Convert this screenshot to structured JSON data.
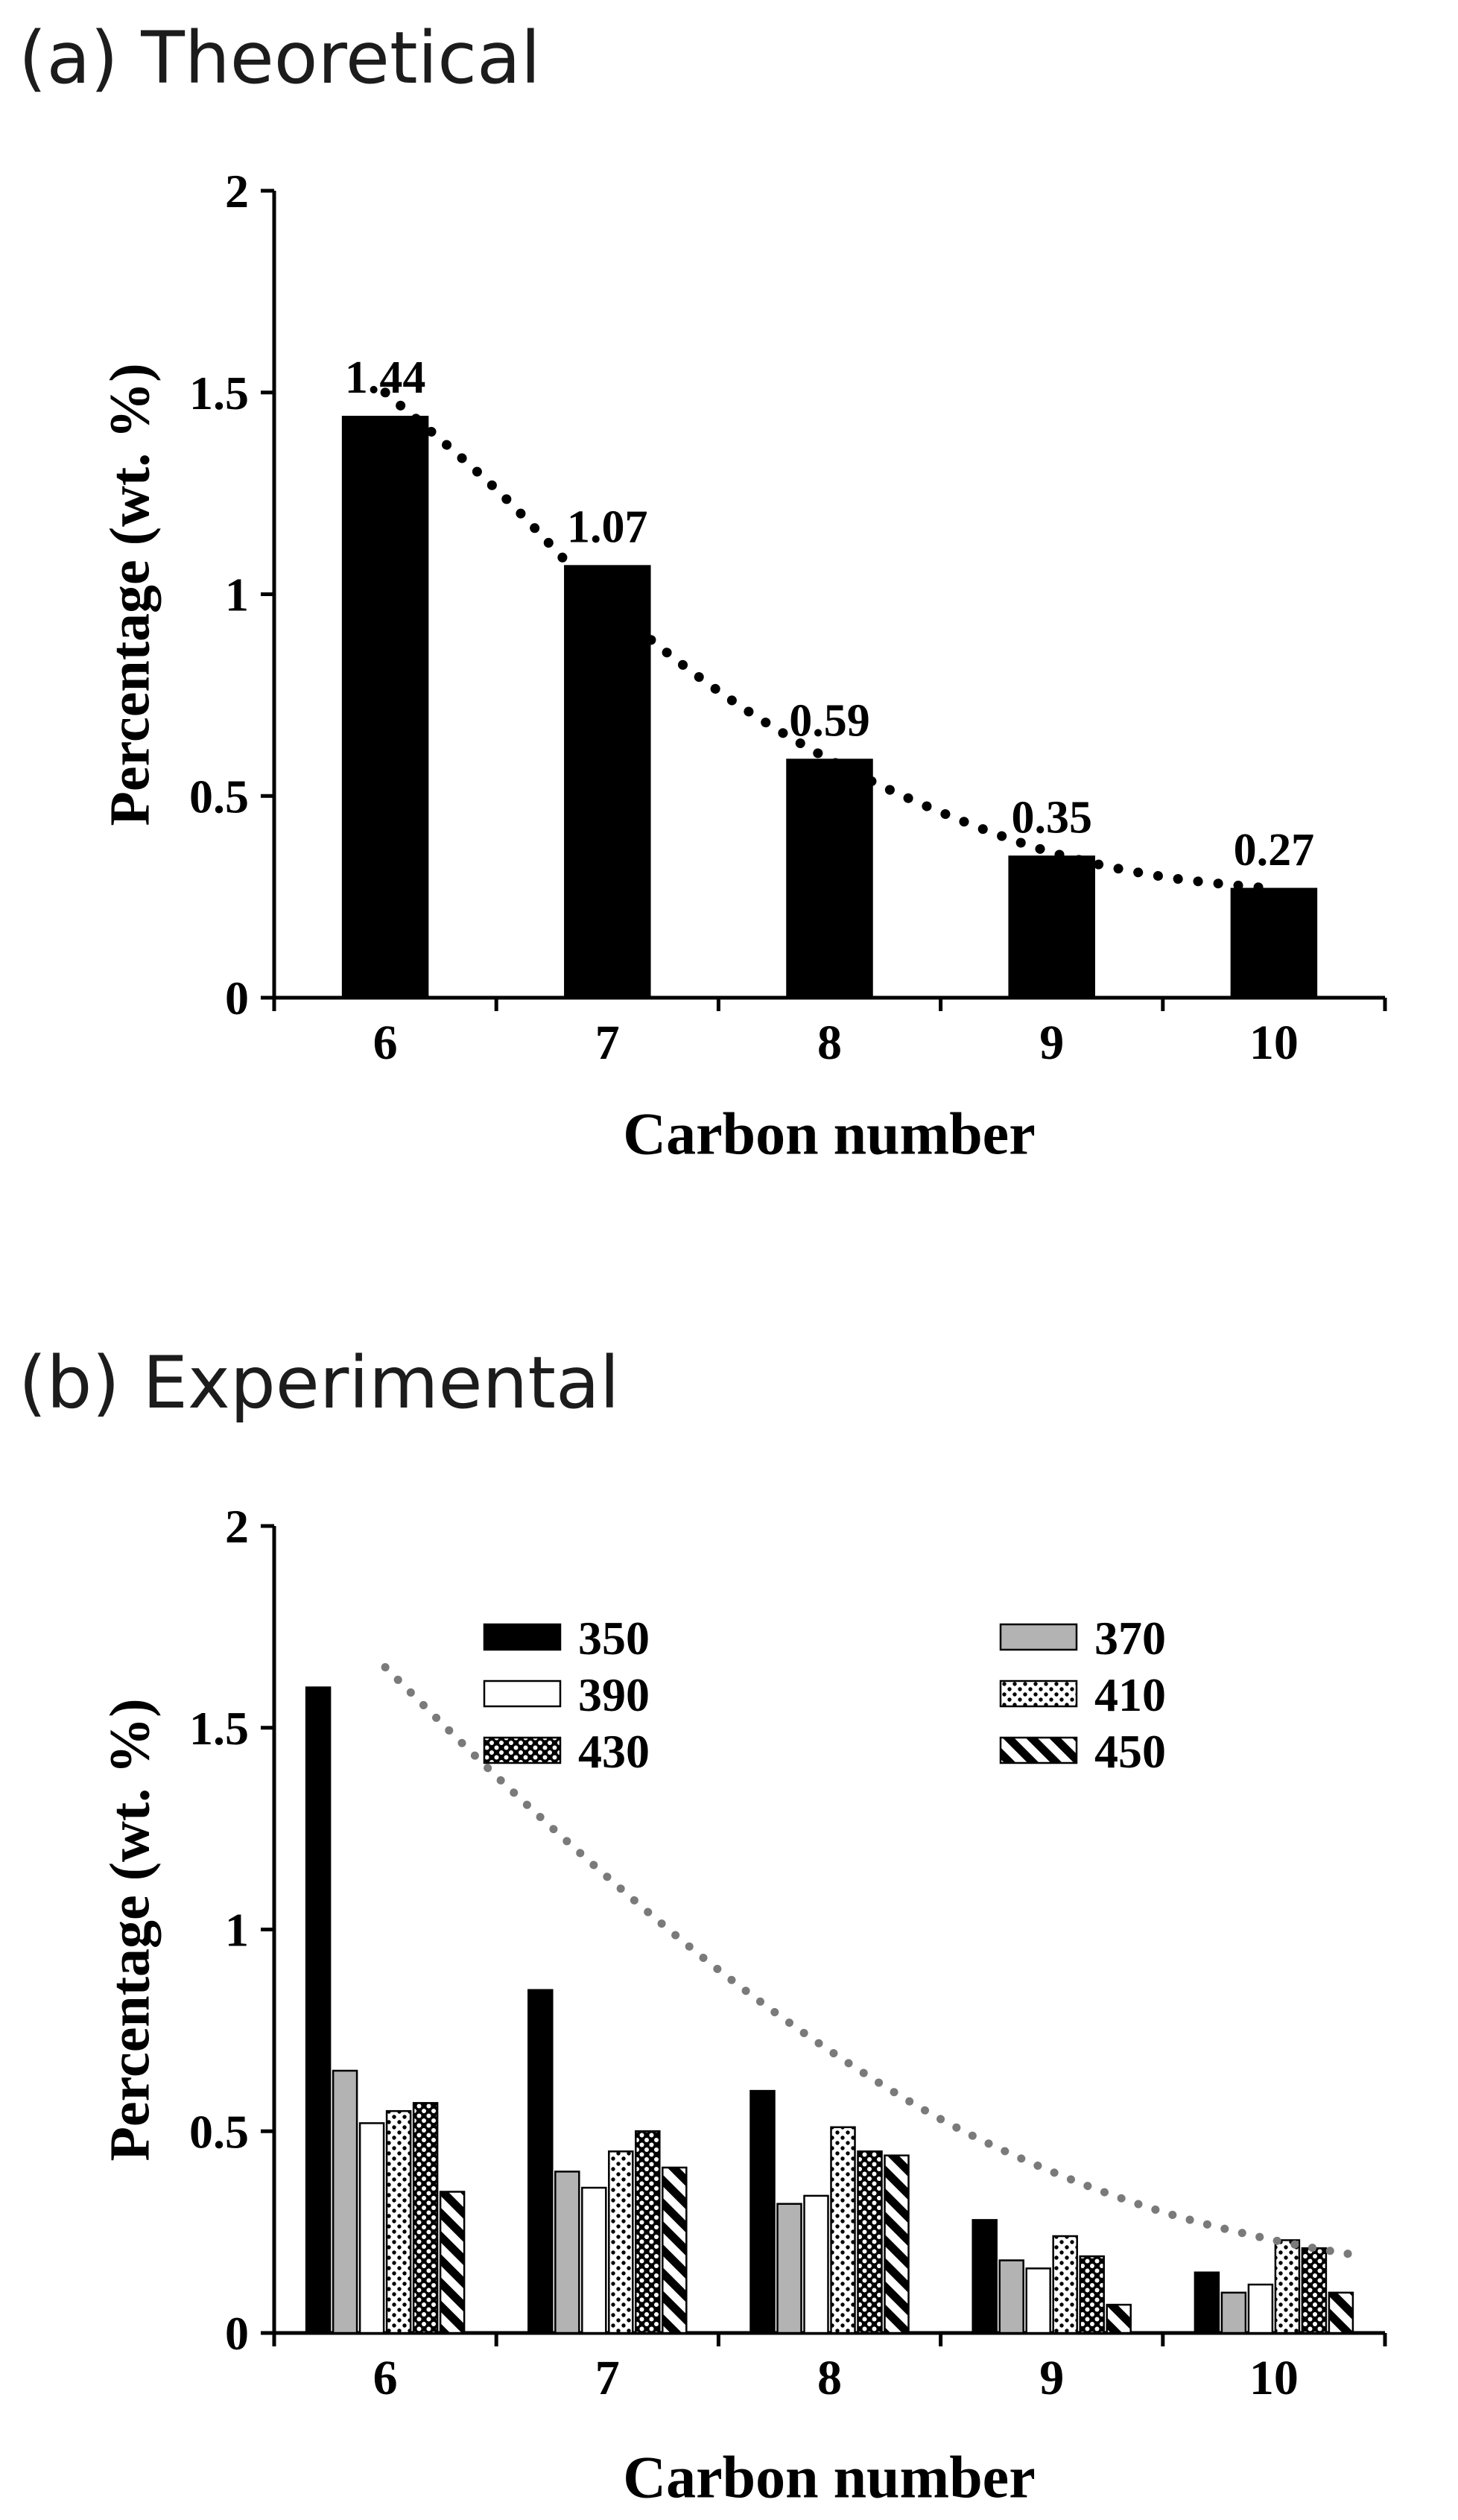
{
  "panels": [
    {
      "label": "(a) Theoretical",
      "ylabel": "Percentage (wt. %)",
      "xlabel": "Carbon number"
    },
    {
      "label": "(b) Experimental",
      "ylabel": "Percentage (wt. %)",
      "xlabel": "Carbon number"
    }
  ],
  "chart_data": [
    {
      "type": "bar",
      "title": "(a) Theoretical",
      "categories": [
        "6",
        "7",
        "8",
        "9",
        "10"
      ],
      "values": [
        1.44,
        1.07,
        0.59,
        0.35,
        0.27
      ],
      "bar_labels": [
        "1.44",
        "1.07",
        "0.59",
        "0.35",
        "0.27"
      ],
      "xlabel": "Carbon number",
      "ylabel": "Percentage (wt. %)",
      "ylim": [
        0,
        2
      ],
      "yticks": [
        "0",
        "0.5",
        "1",
        "1.5",
        "2"
      ],
      "ytick_values": [
        0,
        0.5,
        1,
        1.5,
        2
      ],
      "bar_color": "#000000",
      "grid": false,
      "trend": {
        "color": "#000000",
        "points": [
          [
            6,
            1.5
          ],
          [
            6.5,
            1.26
          ],
          [
            7,
            0.98
          ],
          [
            7.5,
            0.76
          ],
          [
            8,
            0.59
          ],
          [
            8.5,
            0.46
          ],
          [
            9,
            0.36
          ],
          [
            9.5,
            0.3
          ],
          [
            10,
            0.27
          ]
        ]
      },
      "legend": null
    },
    {
      "type": "grouped-bar",
      "title": "(b) Experimental",
      "categories": [
        "6",
        "7",
        "8",
        "9",
        "10"
      ],
      "series": [
        {
          "name": "350",
          "pattern": "solid-black",
          "values": [
            1.6,
            0.85,
            0.6,
            0.28,
            0.15
          ]
        },
        {
          "name": "370",
          "pattern": "solid-gray",
          "values": [
            0.65,
            0.4,
            0.32,
            0.18,
            0.1
          ]
        },
        {
          "name": "390",
          "pattern": "white",
          "values": [
            0.52,
            0.36,
            0.34,
            0.16,
            0.12
          ]
        },
        {
          "name": "410",
          "pattern": "dots-on-white",
          "values": [
            0.55,
            0.45,
            0.51,
            0.24,
            0.23
          ]
        },
        {
          "name": "430",
          "pattern": "dots-on-black",
          "values": [
            0.57,
            0.5,
            0.45,
            0.19,
            0.21
          ]
        },
        {
          "name": "450",
          "pattern": "diagonal",
          "values": [
            0.35,
            0.41,
            0.44,
            0.07,
            0.1
          ]
        }
      ],
      "xlabel": "Carbon number",
      "ylabel": "Percentage (wt. %)",
      "ylim": [
        0,
        2
      ],
      "yticks": [
        "0",
        "0.5",
        "1",
        "1.5",
        "2"
      ],
      "ytick_values": [
        0,
        0.5,
        1,
        1.5,
        2
      ],
      "grid": false,
      "trend": {
        "color": "#7a7a7a",
        "points": [
          [
            6,
            1.65
          ],
          [
            6.5,
            1.38
          ],
          [
            7,
            1.13
          ],
          [
            7.5,
            0.9
          ],
          [
            8,
            0.7
          ],
          [
            8.5,
            0.53
          ],
          [
            9,
            0.4
          ],
          [
            9.5,
            0.3
          ],
          [
            10,
            0.23
          ],
          [
            10.4,
            0.19
          ]
        ]
      },
      "legend": {
        "position": "top-center-inside",
        "columns": [
          [
            "350",
            "390",
            "430"
          ],
          [
            "370",
            "410",
            "450"
          ]
        ]
      },
      "colors": {
        "gray_fill": "#b3b3b3",
        "black_fill": "#000000",
        "white_fill": "#ffffff"
      }
    }
  ]
}
